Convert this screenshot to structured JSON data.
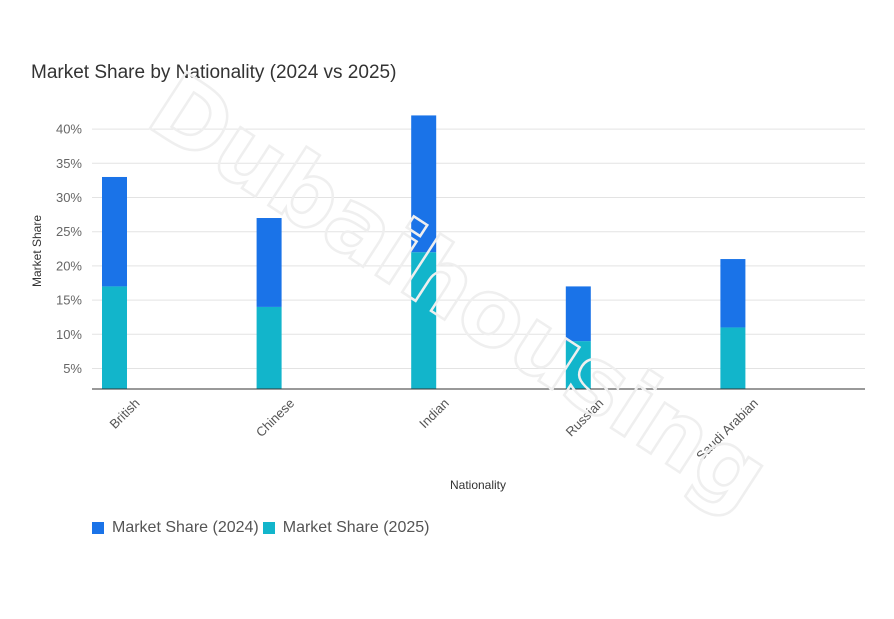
{
  "chart_data": {
    "type": "bar",
    "stacked": true,
    "title": "Market Share by Nationality (2024 vs 2025)",
    "xlabel": "Nationality",
    "ylabel": "Market Share",
    "categories": [
      "British",
      "Chinese",
      "Indian",
      "Russian",
      "Saudi Arabian"
    ],
    "series": [
      {
        "name": "Market Share (2025)",
        "color": "#12b5cb",
        "values": [
          17,
          14,
          22,
          9,
          11
        ]
      },
      {
        "name": "Market Share (2024)",
        "color": "#1a73e8",
        "values": [
          16,
          13,
          20,
          8,
          10
        ]
      }
    ],
    "legend_order": [
      1,
      0
    ],
    "y_ticks": [
      "5%",
      "10%",
      "15%",
      "20%",
      "25%",
      "30%",
      "35%",
      "40%"
    ],
    "y_tick_values": [
      5,
      10,
      15,
      20,
      25,
      30,
      35,
      40
    ],
    "ylim": [
      2,
      42.5
    ],
    "grid": true,
    "legend_position": "bottom-left"
  },
  "watermark": "Dubaihousing"
}
